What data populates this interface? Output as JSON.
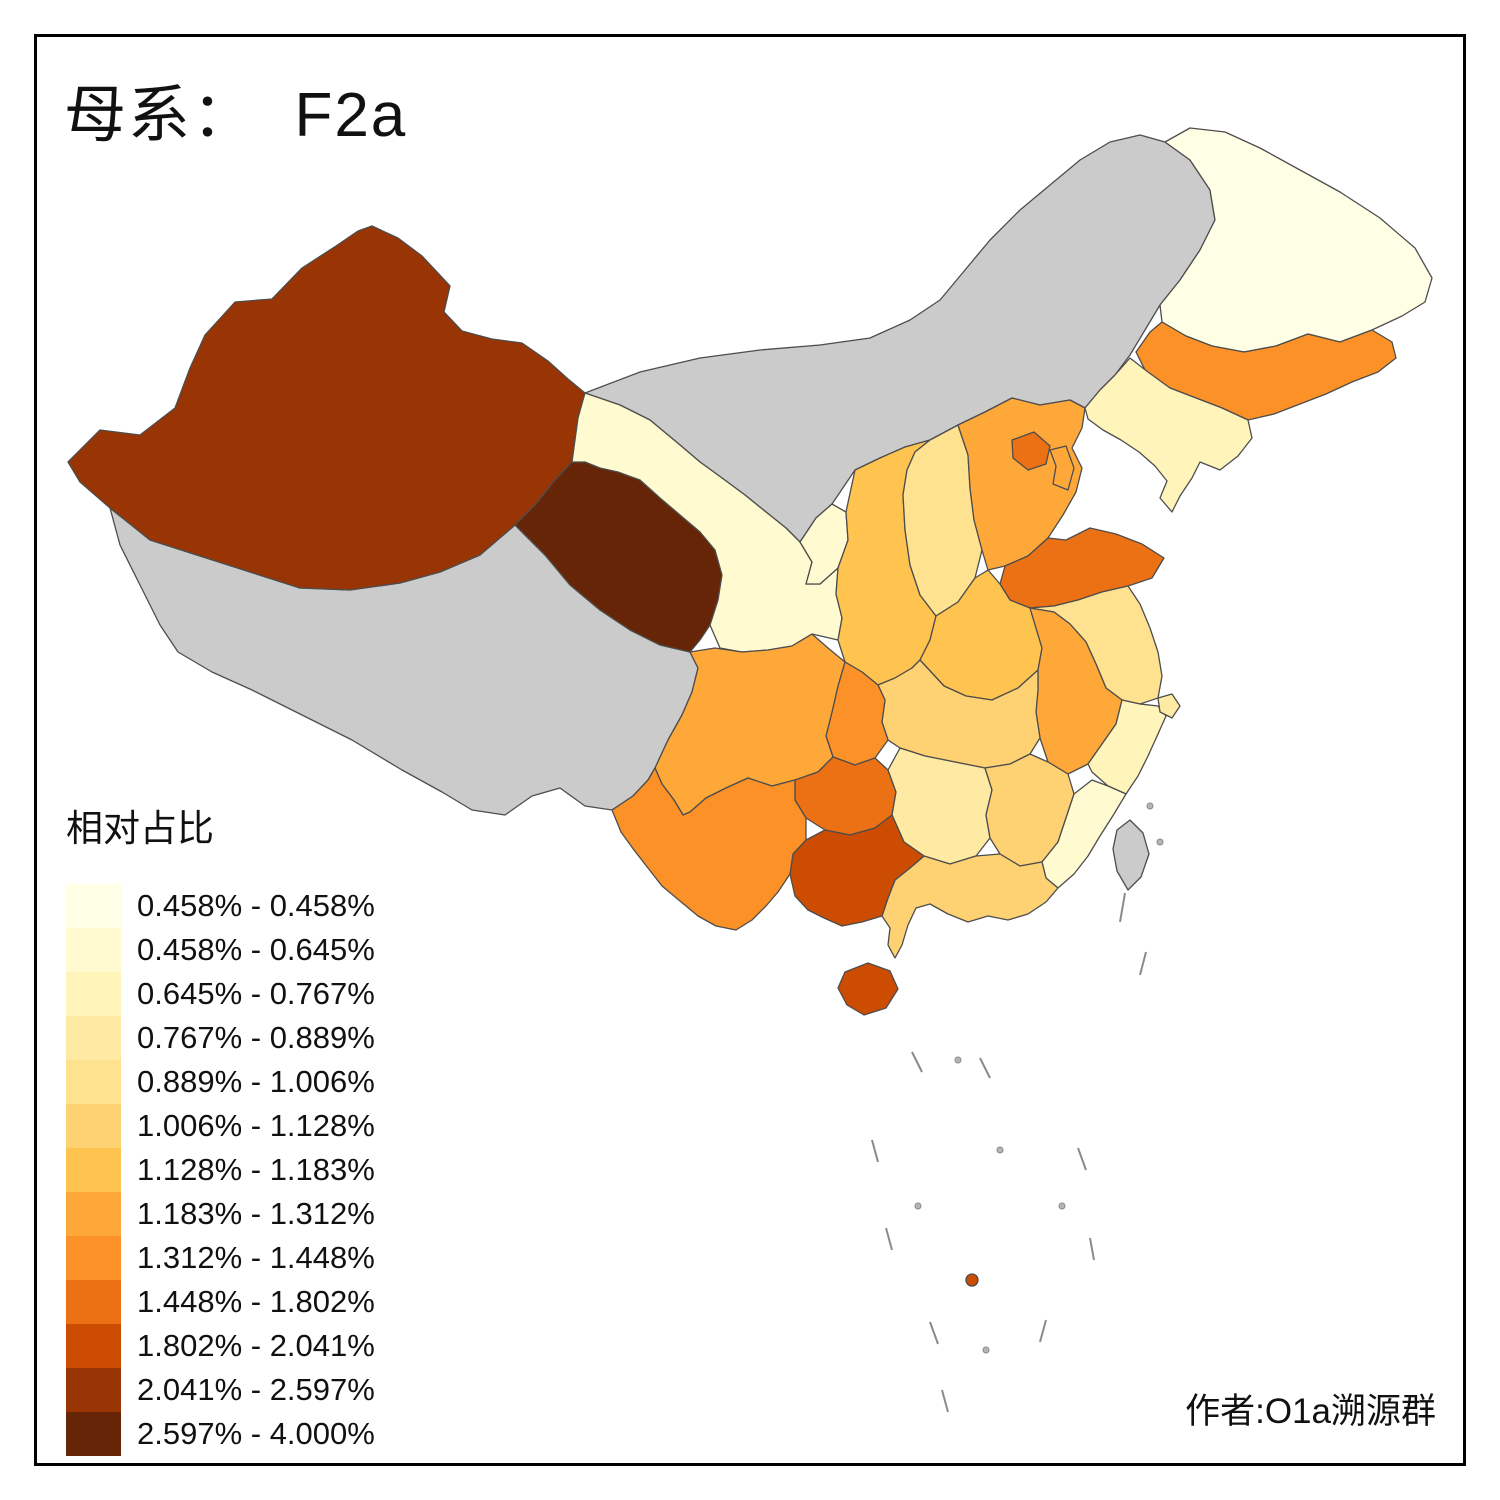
{
  "title": "母系：  F2a",
  "legend": {
    "title": "相对占比",
    "entries": [
      {
        "label": "0.458% - 0.458%",
        "color": "#FFFFE5"
      },
      {
        "label": "0.458% - 0.645%",
        "color": "#FFFAD0"
      },
      {
        "label": "0.645% - 0.767%",
        "color": "#FFF4BA"
      },
      {
        "label": "0.767% - 0.889%",
        "color": "#FEEAA2"
      },
      {
        "label": "0.889% - 1.006%",
        "color": "#FEE28F"
      },
      {
        "label": "1.006% - 1.128%",
        "color": "#FED273"
      },
      {
        "label": "1.128% - 1.183%",
        "color": "#FEC44F"
      },
      {
        "label": "1.183% - 1.312%",
        "color": "#FEA83A"
      },
      {
        "label": "1.312% - 1.448%",
        "color": "#FB9127"
      },
      {
        "label": "1.448% - 1.802%",
        "color": "#EC7014"
      },
      {
        "label": "1.802% - 2.041%",
        "color": "#CC4C02"
      },
      {
        "label": "2.041% - 2.597%",
        "color": "#993404"
      },
      {
        "label": "2.597% - 4.000%",
        "color": "#662506"
      }
    ]
  },
  "attribution": "作者:O1a溯源群",
  "map": {
    "no_data_color": "#CBCBCB",
    "border_color": "#4D4D4D",
    "provinces": [
      {
        "id": "xizang",
        "bin": null
      },
      {
        "id": "neimenggu",
        "bin": null
      },
      {
        "id": "taiwan",
        "bin": null
      },
      {
        "id": "heilongjiang",
        "bin": 1
      },
      {
        "id": "gansu",
        "bin": 2
      },
      {
        "id": "ningxia",
        "bin": 2
      },
      {
        "id": "fujian",
        "bin": 2
      },
      {
        "id": "liaoning",
        "bin": 3
      },
      {
        "id": "zhejiang",
        "bin": 3
      },
      {
        "id": "hunan",
        "bin": 4
      },
      {
        "id": "shanghai",
        "bin": 4
      },
      {
        "id": "jiangsu",
        "bin": 5
      },
      {
        "id": "shanxi",
        "bin": 5
      },
      {
        "id": "hubei",
        "bin": 6
      },
      {
        "id": "jiangxi",
        "bin": 6
      },
      {
        "id": "guangdong",
        "bin": 6
      },
      {
        "id": "henan",
        "bin": 7
      },
      {
        "id": "shaanxi",
        "bin": 7
      },
      {
        "id": "hebei",
        "bin": 8
      },
      {
        "id": "tianjin",
        "bin": 8
      },
      {
        "id": "sichuan",
        "bin": 8
      },
      {
        "id": "anhui",
        "bin": 8
      },
      {
        "id": "jilin",
        "bin": 9
      },
      {
        "id": "chongqing",
        "bin": 9
      },
      {
        "id": "yunnan",
        "bin": 9
      },
      {
        "id": "beijing",
        "bin": 10
      },
      {
        "id": "shandong",
        "bin": 10
      },
      {
        "id": "guizhou",
        "bin": 10
      },
      {
        "id": "guangxi",
        "bin": 11
      },
      {
        "id": "hainan",
        "bin": 11
      },
      {
        "id": "south-sea-islet",
        "bin": 11
      },
      {
        "id": "xinjiang",
        "bin": 12
      },
      {
        "id": "qinghai",
        "bin": 13
      }
    ]
  }
}
